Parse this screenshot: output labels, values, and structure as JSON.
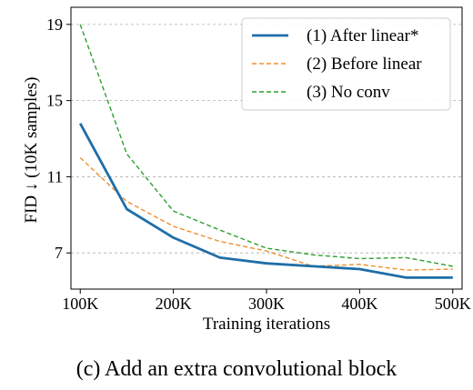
{
  "caption": "(c) Add an extra convolutional block",
  "chart_data": {
    "type": "line",
    "xlabel": "Training iterations",
    "ylabel": "FID ↓ (10K samples)",
    "x": [
      100000,
      150000,
      200000,
      250000,
      300000,
      350000,
      400000,
      450000,
      500000
    ],
    "xticks": [
      100000,
      200000,
      300000,
      400000,
      500000
    ],
    "xtick_labels": [
      "100K",
      "200K",
      "300K",
      "400K",
      "500K"
    ],
    "yticks": [
      7,
      11,
      15,
      19
    ],
    "ytick_labels": [
      "7",
      "11",
      "15",
      "19"
    ],
    "xlim": [
      90000,
      510000
    ],
    "ylim": [
      5.1,
      19.9
    ],
    "grid": "horizontal dashed",
    "legend_position": "top-right",
    "series": [
      {
        "name": "(1) After linear*",
        "color": "#1f6ea8",
        "style": "solid",
        "values": [
          13.8,
          9.3,
          7.8,
          6.75,
          6.45,
          6.3,
          6.15,
          5.7,
          5.7
        ]
      },
      {
        "name": "(2) Before linear",
        "color": "#f28e2b",
        "style": "dashed",
        "values": [
          12.0,
          9.7,
          8.4,
          7.6,
          7.1,
          6.3,
          6.4,
          6.1,
          6.15
        ]
      },
      {
        "name": "(3) No conv",
        "color": "#2ca02c",
        "style": "dashed",
        "values": [
          19.0,
          12.2,
          9.2,
          8.2,
          7.25,
          6.9,
          6.7,
          6.75,
          6.3
        ]
      }
    ]
  }
}
